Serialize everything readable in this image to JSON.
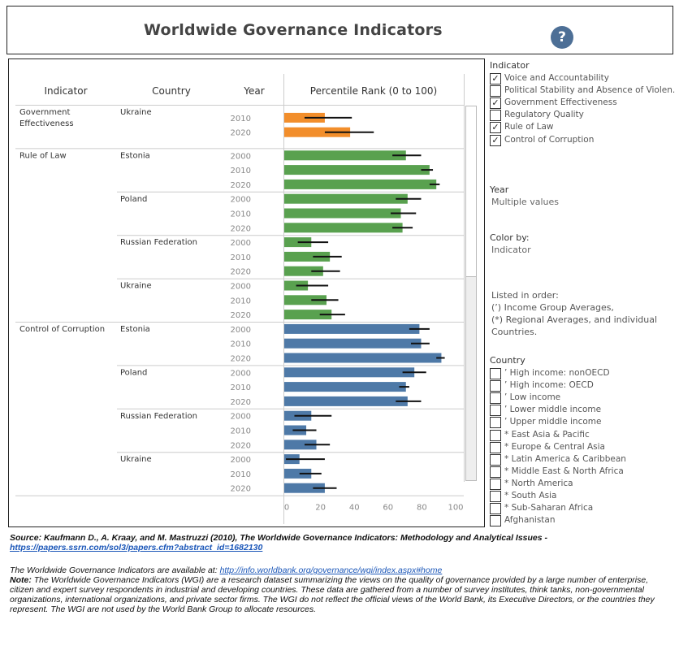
{
  "header": {
    "title": "Worldwide Governance Indicators",
    "help_symbol": "?"
  },
  "table": {
    "headers": {
      "indicator": "Indicator",
      "country": "Country",
      "year": "Year",
      "rank": "Percentile Rank (0 to 100)"
    },
    "axis_ticks": [
      "0",
      "20",
      "40",
      "60",
      "80",
      "100"
    ]
  },
  "chart_data": {
    "type": "bar",
    "title": "Percentile Rank (0 to 100)",
    "xlim": [
      0,
      100
    ],
    "colors": {
      "Government Effectiveness": "#f28e2b",
      "Rule of Law": "#59a14f",
      "Control of Corruption": "#4e79a7"
    },
    "groups": [
      {
        "indicator": "Government Effectiveness",
        "indicator_lines": [
          "Government",
          "Effectiveness"
        ],
        "countries": [
          {
            "country": "Ukraine",
            "rows": [
              {
                "year": "2010",
                "value": 24,
                "low": 12,
                "high": 40
              },
              {
                "year": "2020",
                "value": 39,
                "low": 24,
                "high": 53
              }
            ]
          }
        ]
      },
      {
        "indicator": "Rule of Law",
        "indicator_lines": [
          "Rule of Law"
        ],
        "countries": [
          {
            "country": "Estonia",
            "rows": [
              {
                "year": "2000",
                "value": 72,
                "low": 64,
                "high": 81
              },
              {
                "year": "2010",
                "value": 86,
                "low": 81,
                "high": 88
              },
              {
                "year": "2020",
                "value": 90,
                "low": 86,
                "high": 92
              }
            ]
          },
          {
            "country": "Poland",
            "rows": [
              {
                "year": "2000",
                "value": 73,
                "low": 66,
                "high": 81
              },
              {
                "year": "2010",
                "value": 69,
                "low": 63,
                "high": 78
              },
              {
                "year": "2020",
                "value": 70,
                "low": 64,
                "high": 76
              }
            ]
          },
          {
            "country": "Russian Federation",
            "rows": [
              {
                "year": "2000",
                "value": 16,
                "low": 8,
                "high": 26
              },
              {
                "year": "2010",
                "value": 27,
                "low": 17,
                "high": 34
              },
              {
                "year": "2020",
                "value": 23,
                "low": 16,
                "high": 33
              }
            ]
          },
          {
            "country": "Ukraine",
            "rows": [
              {
                "year": "2000",
                "value": 14,
                "low": 7,
                "high": 26
              },
              {
                "year": "2010",
                "value": 25,
                "low": 16,
                "high": 32
              },
              {
                "year": "2020",
                "value": 28,
                "low": 21,
                "high": 36
              }
            ]
          }
        ]
      },
      {
        "indicator": "Control of Corruption",
        "indicator_lines": [
          "Control of Corruption"
        ],
        "countries": [
          {
            "country": "Estonia",
            "rows": [
              {
                "year": "2000",
                "value": 80,
                "low": 74,
                "high": 86
              },
              {
                "year": "2010",
                "value": 81,
                "low": 75,
                "high": 86
              },
              {
                "year": "2020",
                "value": 93,
                "low": 90,
                "high": 95
              }
            ]
          },
          {
            "country": "Poland",
            "rows": [
              {
                "year": "2000",
                "value": 77,
                "low": 70,
                "high": 84
              },
              {
                "year": "2010",
                "value": 72,
                "low": 68,
                "high": 74
              },
              {
                "year": "2020",
                "value": 73,
                "low": 66,
                "high": 81
              }
            ]
          },
          {
            "country": "Russian Federation",
            "rows": [
              {
                "year": "2000",
                "value": 16,
                "low": 6,
                "high": 28
              },
              {
                "year": "2010",
                "value": 13,
                "low": 5,
                "high": 19
              },
              {
                "year": "2020",
                "value": 19,
                "low": 12,
                "high": 27
              }
            ]
          },
          {
            "country": "Ukraine",
            "rows": [
              {
                "year": "2000",
                "value": 9,
                "low": 1,
                "high": 24
              },
              {
                "year": "2010",
                "value": 16,
                "low": 9,
                "high": 22
              },
              {
                "year": "2020",
                "value": 24,
                "low": 17,
                "high": 31
              }
            ]
          }
        ]
      }
    ]
  },
  "panel": {
    "indicator_title": "Indicator",
    "indicators": [
      {
        "label": "Voice and Accountability",
        "checked": true
      },
      {
        "label": "Political Stability and Absence of Violen..",
        "checked": false
      },
      {
        "label": "Government Effectiveness",
        "checked": true
      },
      {
        "label": "Regulatory Quality",
        "checked": false
      },
      {
        "label": "Rule of Law",
        "checked": true
      },
      {
        "label": "Control of Corruption",
        "checked": true
      }
    ],
    "year_title": "Year",
    "year_value": "Multiple values",
    "color_title": "Color by:",
    "color_value": "Indicator",
    "order_note": [
      "Listed in order:",
      "(’) Income Group Averages,",
      "(*) Regional Averages, and individual",
      "Countries."
    ],
    "country_title": "Country",
    "countries": [
      {
        "label": "’ High income: nonOECD",
        "checked": false
      },
      {
        "label": "’ High income: OECD",
        "checked": false
      },
      {
        "label": "’ Low income",
        "checked": false
      },
      {
        "label": "’ Lower middle income",
        "checked": false
      },
      {
        "label": "’ Upper middle income",
        "checked": false
      },
      {
        "label": "* East Asia & Pacific",
        "checked": false
      },
      {
        "label": "* Europe & Central Asia",
        "checked": false
      },
      {
        "label": "* Latin America & Caribbean",
        "checked": false
      },
      {
        "label": "* Middle East & North Africa",
        "checked": false
      },
      {
        "label": "* North America",
        "checked": false
      },
      {
        "label": "* South Asia",
        "checked": false
      },
      {
        "label": "* Sub-Saharan Africa",
        "checked": false
      },
      {
        "label": "Afghanistan",
        "checked": false
      }
    ]
  },
  "footer": {
    "source_text": "Source: Kaufmann D., A. Kraay, and M. Mastruzzi (2010), The Worldwide Governance Indicators: Methodology and Analytical Issues -",
    "source_link": "https://papers.ssrn.com/sol3/papers.cfm?abstract_id=1682130",
    "avail_text": "The Worldwide Governance Indicators are available at: ",
    "avail_link": "http://info.worldbank.org/governance/wgi/index.aspx#home",
    "note_label": "Note:",
    "note_text": " The Worldwide Governance Indicators (WGI) are a research dataset summarizing the views on the quality of governance provided by a large number of enterprise, citizen and expert survey respondents in industrial and developing countries. These data are gathered from a number of survey institutes, think tanks, non-governmental organizations, international organizations, and private sector firms. The WGI do not reflect the official views of the World Bank, its Executive Directors, or the countries they represent. The WGI are not used by the World Bank Group to allocate resources."
  }
}
